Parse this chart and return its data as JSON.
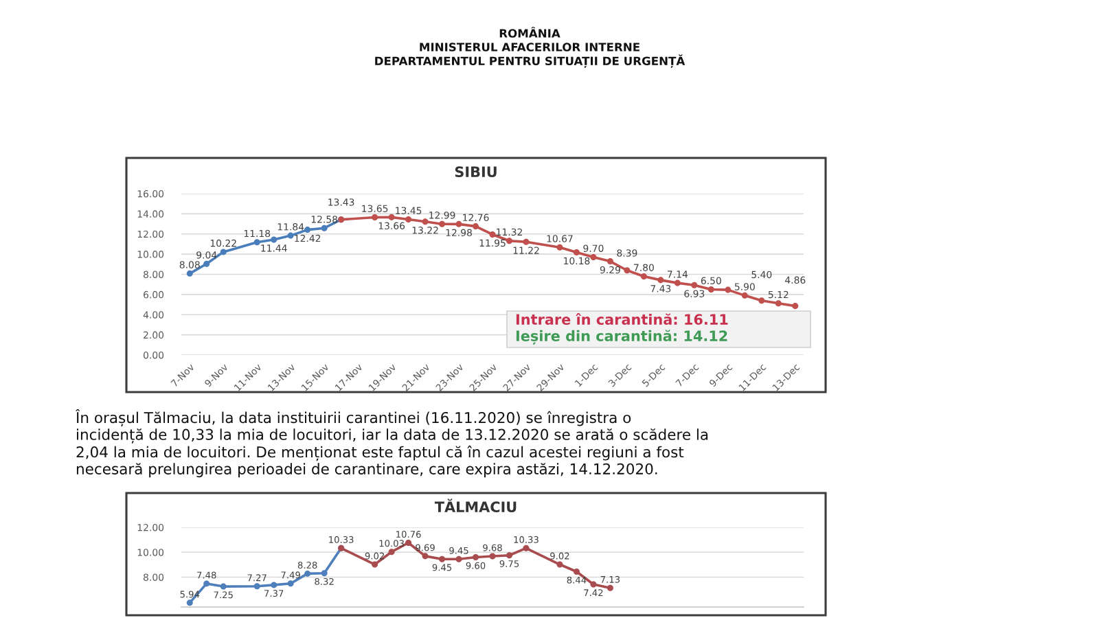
{
  "chart_data": [
    {
      "type": "line",
      "title": "SIBIU",
      "annotations": [
        "ROMÂNIA",
        "MINISTERUL AFACERILOR INTERNE",
        "DEPARTAMENTUL PENTRU SITUAȚII DE URGENȚĂ",
        "Intrare în carantină: 16.11",
        "Ieșire din carantină: 14.12"
      ],
      "categories": [
        "7-Nov",
        null,
        "9-Nov",
        null,
        "11-Nov",
        null,
        "13-Nov",
        null,
        "15-Nov",
        null,
        "17-Nov",
        null,
        "19-Nov",
        null,
        "21-Nov",
        null,
        "23-Nov",
        null,
        "25-Nov",
        null,
        "27-Nov",
        null,
        "29-Nov",
        null,
        "1-Dec",
        null,
        "3-Dec",
        null,
        "5-Dec",
        null,
        "7-Dec",
        null,
        "9-Dec",
        null,
        "11-Dec",
        null,
        "13-Dec"
      ],
      "series": [
        {
          "color": "#4a7ebb",
          "values": [
            8.08,
            9.04,
            10.22,
            null,
            11.18,
            11.44,
            11.84,
            12.42,
            12.58,
            13.43,
            null,
            null,
            null,
            null,
            null,
            null,
            null,
            null,
            null,
            null,
            null,
            null,
            null,
            null,
            null,
            null,
            null,
            null,
            null,
            null,
            null,
            null,
            null,
            null,
            null,
            null,
            null
          ],
          "value_labels": [
            "8.08",
            "9.04",
            "10.22",
            null,
            "11.18",
            "11.44",
            "11.84",
            "12.42",
            "12.58",
            null,
            null,
            null,
            null,
            null,
            null,
            null,
            null,
            null,
            null,
            null,
            null,
            null,
            null,
            null,
            null,
            null,
            null,
            null,
            null,
            null,
            null,
            null,
            null,
            null,
            null,
            null,
            null
          ]
        },
        {
          "color": "#c0504d",
          "values": [
            null,
            null,
            null,
            null,
            null,
            null,
            null,
            null,
            null,
            13.43,
            null,
            13.65,
            13.66,
            13.45,
            13.22,
            12.99,
            12.98,
            12.76,
            11.95,
            11.32,
            11.22,
            null,
            10.67,
            10.18,
            9.7,
            9.29,
            8.39,
            7.8,
            7.43,
            7.14,
            6.93,
            6.5,
            6.46,
            5.9,
            5.4,
            5.12,
            4.86
          ],
          "value_labels": [
            null,
            null,
            null,
            null,
            null,
            null,
            null,
            null,
            null,
            "13.43",
            null,
            "13.65",
            "13.66",
            "13.45",
            "13.22",
            "12.99",
            "12.98",
            "12.76",
            "11.95",
            "11.32",
            "11.22",
            null,
            "10.67",
            "10.18",
            "9.70",
            "9.29",
            "8.39",
            "7.80",
            "7.43",
            "7.14",
            "6.93",
            "6.50",
            null,
            "5.90",
            "5.40",
            "5.12",
            "4.86"
          ]
        }
      ],
      "ylim": [
        0,
        16
      ],
      "yticks": [
        {
          "value": 0,
          "label": "0.00"
        },
        {
          "value": 2,
          "label": "2.00"
        },
        {
          "value": 4,
          "label": "4.00"
        },
        {
          "value": 6,
          "label": "6.00"
        },
        {
          "value": 8,
          "label": "8.00"
        },
        {
          "value": 10,
          "label": "10.00"
        },
        {
          "value": 12,
          "label": "12.00"
        },
        {
          "value": 14,
          "label": "14.00"
        },
        {
          "value": 16,
          "label": "16.00"
        }
      ],
      "grid": "y",
      "marker": "circle",
      "line_style": "solid"
    },
    {
      "type": "line",
      "title": "TĂLMACIU",
      "annotations": [
        "În orașul Tălmaciu, la data instituirii carantinei (16.11.2020) se înregistra o\nincidență de 10,33 la mia de locuitori, iar la data de 13.12.2020 se arată o scădere la\n2,04 la mia de locuitori. De menționat este faptul că în cazul acestei regiuni a fost\nnecesară prelungirea perioadei de carantinare, care expira astăzi, 14.12.2020."
      ],
      "categories": [
        null,
        null,
        null,
        null,
        null,
        null,
        null,
        null,
        null,
        null,
        null,
        null,
        null,
        null,
        null,
        null,
        null,
        null,
        null,
        null,
        null,
        null,
        null,
        null,
        null,
        null,
        null,
        null,
        null,
        null,
        null,
        null,
        null,
        null,
        null,
        null,
        null
      ],
      "series": [
        {
          "color": "#4f7fbb",
          "values": [
            5.94,
            7.48,
            7.25,
            null,
            7.27,
            7.37,
            7.49,
            8.28,
            8.32,
            10.33,
            null,
            null,
            null,
            null,
            null,
            null,
            null,
            null,
            null,
            null,
            null,
            null,
            null,
            null,
            null,
            null,
            null,
            null,
            null,
            null,
            null,
            null,
            null,
            null,
            null,
            null,
            null
          ],
          "value_labels": [
            "5.94",
            "7.48",
            "7.25",
            null,
            "7.27",
            "7.37",
            "7.49",
            "8.28",
            "8.32",
            null,
            null,
            null,
            null,
            null,
            null,
            null,
            null,
            null,
            null,
            null,
            null,
            null,
            null,
            null,
            null,
            null,
            null,
            null,
            null,
            null,
            null,
            null,
            null,
            null,
            null,
            null,
            null
          ]
        },
        {
          "color": "#a84c4f",
          "values": [
            null,
            null,
            null,
            null,
            null,
            null,
            null,
            null,
            null,
            10.33,
            null,
            9.02,
            10.03,
            10.76,
            9.69,
            9.45,
            9.45,
            9.6,
            9.68,
            9.75,
            10.33,
            null,
            9.02,
            8.44,
            7.42,
            7.13,
            null,
            null,
            null,
            null,
            null,
            null,
            null,
            null,
            null,
            null,
            null
          ],
          "value_labels": [
            null,
            null,
            null,
            null,
            null,
            null,
            null,
            null,
            null,
            "10.33",
            null,
            "9.02",
            "10.03",
            "10.76",
            "9.69",
            "9.45",
            "9.45",
            "9.60",
            "9.68",
            "9.75",
            "10.33",
            null,
            "9.02",
            "8.44",
            "7.42",
            "7.13",
            null,
            null,
            null,
            null,
            null,
            null,
            null,
            null,
            null,
            null,
            null
          ]
        }
      ],
      "ylim": [
        5.6,
        12
      ],
      "yticks": [
        {
          "value": 8,
          "label": "8.00"
        },
        {
          "value": 10,
          "label": "10.00"
        },
        {
          "value": 12,
          "label": "12.00"
        }
      ],
      "tick_labels": "y",
      "grid": "y",
      "marker": "circle",
      "line_style": "solid"
    }
  ]
}
